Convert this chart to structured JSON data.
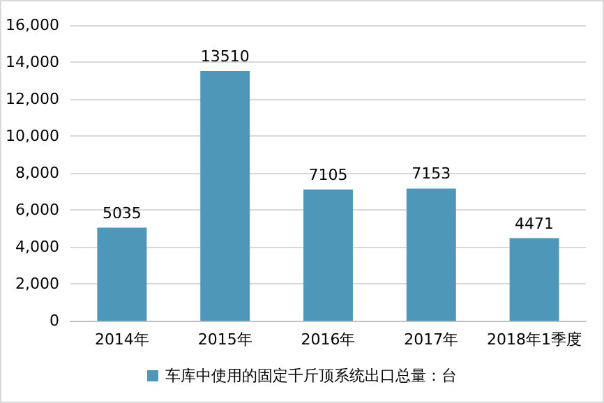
{
  "chart_data": {
    "type": "bar",
    "categories": [
      "2014年",
      "2015年",
      "2016年",
      "2017年",
      "2018年1季度"
    ],
    "series": [
      {
        "name": "车库中使用的固定千斤顶系统出口总量：台",
        "color": "#4f97b8",
        "values": [
          5035,
          13510,
          7105,
          7153,
          4471
        ]
      }
    ],
    "ylim": [
      0,
      16000
    ],
    "yticks": [
      0,
      {
        "value": 2000,
        "label": "2,000"
      },
      {
        "value": 4000,
        "label": "4,000"
      },
      {
        "value": 6000,
        "label": "6,000"
      },
      {
        "value": 8000,
        "label": "8,000"
      },
      {
        "value": 10000,
        "label": "10,000"
      },
      {
        "value": 12000,
        "label": "12,000"
      },
      {
        "value": 14000,
        "label": "14,000"
      },
      {
        "value": 16000,
        "label": "16,000"
      }
    ],
    "grid": "y",
    "legend": "bottom",
    "data_labels": true
  }
}
